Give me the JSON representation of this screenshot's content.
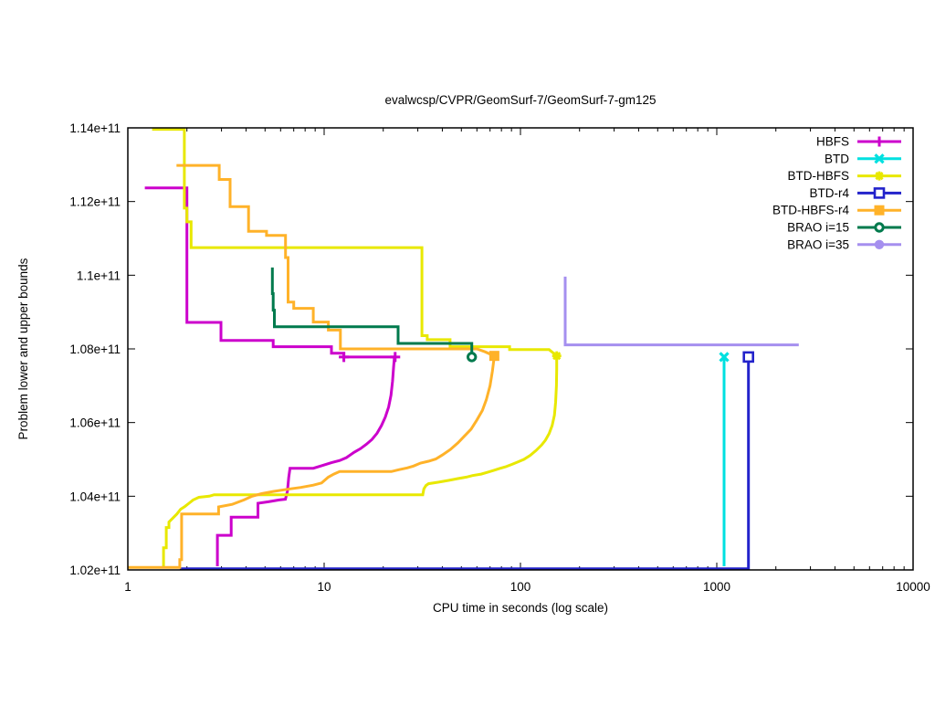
{
  "title": "evalwcsp/CVPR/GeomSurf-7/GeomSurf-7-gm125",
  "axes": {
    "x": {
      "label": "CPU time in seconds (log scale)",
      "scale": "log",
      "tick_labels": [
        "1",
        "10",
        "100",
        "1000",
        "10000"
      ],
      "tick_values": [
        1,
        10,
        100,
        1000,
        10000
      ]
    },
    "y": {
      "label": "Problem lower and upper bounds",
      "tick_labels": [
        "1.02e+11",
        "1.04e+11",
        "1.06e+11",
        "1.08e+11",
        "1.1e+11",
        "1.12e+11",
        "1.14e+11"
      ],
      "tick_values": [
        102000000000.0,
        104000000000.0,
        106000000000.0,
        108000000000.0,
        110000000000.0,
        112000000000.0,
        114000000000.0
      ]
    }
  },
  "legend": {
    "position": "top-right",
    "entries": [
      {
        "label": "HBFS",
        "color": "#CC00CC",
        "marker": "plus"
      },
      {
        "label": "BTD",
        "color": "#00E0E0",
        "marker": "x"
      },
      {
        "label": "BTD-HBFS",
        "color": "#E8E800",
        "marker": "asterisk"
      },
      {
        "label": "BTD-r4",
        "color": "#2323CB",
        "marker": "square-open"
      },
      {
        "label": "BTD-HBFS-r4",
        "color": "#FFB229",
        "marker": "square-filled"
      },
      {
        "label": "BRAO i=15",
        "color": "#007A4D",
        "marker": "circle-open"
      },
      {
        "label": "BRAO i=35",
        "color": "#A58FEF",
        "marker": "circle-filled"
      }
    ]
  },
  "chart_data": {
    "type": "line",
    "title": "evalwcsp/CVPR/GeomSurf-7/GeomSurf-7-gm125",
    "xlabel": "CPU time in seconds (log scale)",
    "ylabel": "Problem lower and upper bounds",
    "x_scale": "log",
    "xlim": [
      1,
      10000
    ],
    "ylim": [
      102000000000.0,
      114000000000.0
    ],
    "grid": false,
    "legend_position": "top-right-inside",
    "series": [
      {
        "name": "HBFS",
        "color": "#CC00CC",
        "marker": "plus",
        "segments": [
          [
            [
              1.22,
              112370000000.0
            ],
            [
              2.0,
              112370000000.0
            ],
            [
              2.0,
              108720000000.0
            ],
            [
              2.98,
              108720000000.0
            ],
            [
              2.98,
              108230000000.0
            ],
            [
              5.5,
              108230000000.0
            ],
            [
              5.5,
              108060000000.0
            ],
            [
              10.9,
              108060000000.0
            ],
            [
              10.9,
              107880000000.0
            ],
            [
              12.6,
              107880000000.0
            ],
            [
              12.6,
              107780000000.0
            ],
            [
              23,
              107780000000.0
            ]
          ],
          [
            [
              2.86,
              102100000000.0
            ],
            [
              2.86,
              102940000000.0
            ],
            [
              3.36,
              102940000000.0
            ],
            [
              3.36,
              103430000000.0
            ],
            [
              4.6,
              103430000000.0
            ],
            [
              4.6,
              103810000000.0
            ],
            [
              5.2,
              103850000000.0
            ],
            [
              5.9,
              103900000000.0
            ],
            [
              6.35,
              103920000000.0
            ],
            [
              6.5,
              104140000000.0
            ],
            [
              6.6,
              104510000000.0
            ],
            [
              6.7,
              104760000000.0
            ],
            [
              8.8,
              104760000000.0
            ],
            [
              9.7,
              104830000000.0
            ],
            [
              10.9,
              104910000000.0
            ],
            [
              12.0,
              104970000000.0
            ],
            [
              13.0,
              105050000000.0
            ],
            [
              14.2,
              105190000000.0
            ],
            [
              15.3,
              105290000000.0
            ],
            [
              16.4,
              105410000000.0
            ],
            [
              17.5,
              105540000000.0
            ],
            [
              18.6,
              105710000000.0
            ],
            [
              19.6,
              105920000000.0
            ],
            [
              20.5,
              106150000000.0
            ],
            [
              21.3,
              106420000000.0
            ],
            [
              21.9,
              106740000000.0
            ],
            [
              22.3,
              107120000000.0
            ],
            [
              22.6,
              107520000000.0
            ],
            [
              22.8,
              107780000000.0
            ],
            [
              23,
              107780000000.0
            ]
          ]
        ],
        "marker_points": [
          [
            12.6,
            107780000000.0
          ],
          [
            23,
            107780000000.0
          ]
        ]
      },
      {
        "name": "BTD",
        "color": "#00E0E0",
        "marker": "x",
        "segments": [
          [
            [
              1090,
              102100000000.0
            ],
            [
              1090,
              107780000000.0
            ]
          ]
        ],
        "marker_points": [
          [
            1090,
            107780000000.0
          ]
        ]
      },
      {
        "name": "BTD-HBFS",
        "color": "#E8E800",
        "marker": "asterisk",
        "segments": [
          [
            [
              1.33,
              113960000000.0
            ],
            [
              1.94,
              113960000000.0
            ],
            [
              1.94,
              111820000000.0
            ],
            [
              2.0,
              111820000000.0
            ],
            [
              2.0,
              111450000000.0
            ],
            [
              2.1,
              111450000000.0
            ],
            [
              2.1,
              110750000000.0
            ],
            [
              31.5,
              110750000000.0
            ],
            [
              31.5,
              108360000000.0
            ],
            [
              33.5,
              108360000000.0
            ],
            [
              33.5,
              108250000000.0
            ],
            [
              43.8,
              108250000000.0
            ],
            [
              43.8,
              108060000000.0
            ],
            [
              88,
              108060000000.0
            ],
            [
              88,
              107980000000.0
            ],
            [
              140,
              107980000000.0
            ],
            [
              146,
              107900000000.0
            ],
            [
              153,
              107810000000.0
            ]
          ],
          [
            [
              1.52,
              102050000000.0
            ],
            [
              1.52,
              102600000000.0
            ],
            [
              1.57,
              102600000000.0
            ],
            [
              1.57,
              103150000000.0
            ],
            [
              1.62,
              103150000000.0
            ],
            [
              1.62,
              103300000000.0
            ],
            [
              1.7,
              103410000000.0
            ],
            [
              1.78,
              103520000000.0
            ],
            [
              1.86,
              103650000000.0
            ],
            [
              1.95,
              103720000000.0
            ],
            [
              2.05,
              103810000000.0
            ],
            [
              2.15,
              103900000000.0
            ],
            [
              2.3,
              103970000000.0
            ],
            [
              2.6,
              104000000000.0
            ],
            [
              2.75,
              104040000000.0
            ],
            [
              31.8,
              104040000000.0
            ],
            [
              32.2,
              104200000000.0
            ],
            [
              33,
              104290000000.0
            ],
            [
              34,
              104340000000.0
            ],
            [
              38,
              104380000000.0
            ],
            [
              43,
              104430000000.0
            ],
            [
              48,
              104480000000.0
            ],
            [
              53,
              104520000000.0
            ],
            [
              57,
              104560000000.0
            ],
            [
              63,
              104600000000.0
            ],
            [
              68,
              104650000000.0
            ],
            [
              73,
              104700000000.0
            ],
            [
              78,
              104750000000.0
            ],
            [
              84,
              104800000000.0
            ],
            [
              90,
              104860000000.0
            ],
            [
              97,
              104930000000.0
            ],
            [
              104,
              105000000000.0
            ],
            [
              112,
              105110000000.0
            ],
            [
              120,
              105240000000.0
            ],
            [
              128,
              105390000000.0
            ],
            [
              134,
              105520000000.0
            ],
            [
              140,
              105700000000.0
            ],
            [
              145,
              105920000000.0
            ],
            [
              149,
              106200000000.0
            ],
            [
              151,
              106550000000.0
            ],
            [
              152.5,
              107000000000.0
            ],
            [
              153,
              107450000000.0
            ],
            [
              153,
              107810000000.0
            ]
          ]
        ],
        "marker_points": [
          [
            153,
            107810000000.0
          ]
        ]
      },
      {
        "name": "BTD-r4",
        "color": "#2323CB",
        "marker": "square-open",
        "segments": [
          [
            [
              1.84,
              102030000000.0
            ],
            [
              1450,
              102030000000.0
            ],
            [
              1450,
              107780000000.0
            ]
          ]
        ],
        "marker_points": [
          [
            1450,
            107780000000.0
          ]
        ]
      },
      {
        "name": "BTD-HBFS-r4",
        "color": "#FFB229",
        "marker": "square-filled",
        "segments": [
          [
            [
              1.77,
              112980000000.0
            ],
            [
              2.92,
              112980000000.0
            ],
            [
              2.92,
              112600000000.0
            ],
            [
              3.32,
              112600000000.0
            ],
            [
              3.32,
              111860000000.0
            ],
            [
              4.12,
              111860000000.0
            ],
            [
              4.12,
              111190000000.0
            ],
            [
              5.09,
              111190000000.0
            ],
            [
              5.09,
              111080000000.0
            ],
            [
              6.36,
              111080000000.0
            ],
            [
              6.36,
              110480000000.0
            ],
            [
              6.55,
              110480000000.0
            ],
            [
              6.55,
              109270000000.0
            ],
            [
              7.0,
              109270000000.0
            ],
            [
              7.0,
              109100000000.0
            ],
            [
              8.8,
              109100000000.0
            ],
            [
              8.8,
              108730000000.0
            ],
            [
              10.5,
              108730000000.0
            ],
            [
              10.5,
              108510000000.0
            ],
            [
              12.1,
              108510000000.0
            ],
            [
              12.1,
              108000000000.0
            ],
            [
              60,
              108000000000.0
            ],
            [
              66,
              107920000000.0
            ],
            [
              73.6,
              107810000000.0
            ]
          ],
          [
            [
              1.0,
              102070000000.0
            ],
            [
              1.84,
              102070000000.0
            ],
            [
              1.84,
              102280000000.0
            ],
            [
              1.88,
              102280000000.0
            ],
            [
              1.88,
              103520000000.0
            ],
            [
              2.9,
              103520000000.0
            ],
            [
              2.9,
              103710000000.0
            ],
            [
              3.4,
              103780000000.0
            ],
            [
              3.9,
              103900000000.0
            ],
            [
              4.3,
              104000000000.0
            ],
            [
              4.8,
              104070000000.0
            ],
            [
              5.5,
              104130000000.0
            ],
            [
              6.5,
              104190000000.0
            ],
            [
              7.6,
              104240000000.0
            ],
            [
              8.8,
              104300000000.0
            ],
            [
              9.7,
              104360000000.0
            ],
            [
              10.5,
              104520000000.0
            ],
            [
              11.2,
              104600000000.0
            ],
            [
              12.0,
              104670000000.0
            ],
            [
              22,
              104670000000.0
            ],
            [
              24,
              104720000000.0
            ],
            [
              26.5,
              104770000000.0
            ],
            [
              28.5,
              104820000000.0
            ],
            [
              31,
              104900000000.0
            ],
            [
              34,
              104950000000.0
            ],
            [
              37,
              105010000000.0
            ],
            [
              40,
              105120000000.0
            ],
            [
              44,
              105270000000.0
            ],
            [
              48,
              105450000000.0
            ],
            [
              52,
              105640000000.0
            ],
            [
              56,
              105820000000.0
            ],
            [
              60,
              106070000000.0
            ],
            [
              64,
              106330000000.0
            ],
            [
              67,
              106620000000.0
            ],
            [
              70,
              107000000000.0
            ],
            [
              72,
              107400000000.0
            ],
            [
              73.6,
              107810000000.0
            ]
          ]
        ],
        "marker_points": [
          [
            73.6,
            107810000000.0
          ]
        ]
      },
      {
        "name": "BRAO i=15",
        "color": "#007A4D",
        "marker": "circle-open",
        "segments": [
          [
            [
              5.45,
              110210000000.0
            ],
            [
              5.45,
              109500000000.0
            ],
            [
              5.5,
              109500000000.0
            ],
            [
              5.5,
              109050000000.0
            ],
            [
              5.58,
              109050000000.0
            ],
            [
              5.58,
              108600000000.0
            ],
            [
              23.8,
              108600000000.0
            ],
            [
              23.8,
              108150000000.0
            ],
            [
              56.5,
              108150000000.0
            ],
            [
              56.5,
              107780000000.0
            ]
          ]
        ],
        "marker_points": [
          [
            56.5,
            107780000000.0
          ]
        ]
      },
      {
        "name": "BRAO i=35",
        "color": "#A58FEF",
        "marker": "circle-filled",
        "segments": [
          [
            [
              169,
              109960000000.0
            ],
            [
              169,
              108110000000.0
            ],
            [
              2615,
              108110000000.0
            ]
          ]
        ],
        "marker_points": []
      }
    ]
  }
}
